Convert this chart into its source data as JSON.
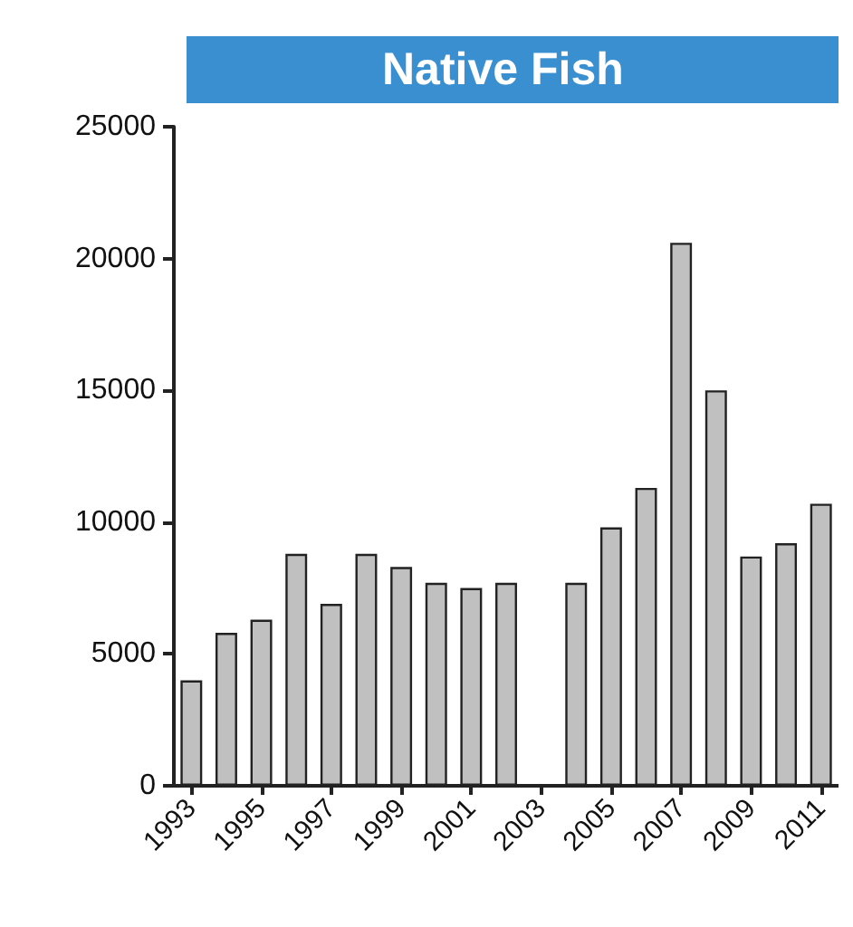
{
  "chart_data": {
    "type": "bar",
    "title": "Native Fish",
    "categories": [
      "1993",
      null,
      "1995",
      null,
      "1997",
      null,
      "1999",
      null,
      "2001",
      null,
      "2003",
      null,
      "2005",
      null,
      "2007",
      null,
      "2009",
      null,
      "2011"
    ],
    "values": [
      4000,
      5800,
      6300,
      8800,
      6900,
      8800,
      8300,
      7700,
      7500,
      7700,
      null,
      7700,
      9800,
      11300,
      20600,
      15000,
      8700,
      9200,
      10700
    ],
    "color": "#c0c0c0",
    "ylim": [
      0,
      25000
    ],
    "yticks": [
      0,
      5000,
      10000,
      15000,
      20000,
      25000
    ],
    "grid": false
  }
}
